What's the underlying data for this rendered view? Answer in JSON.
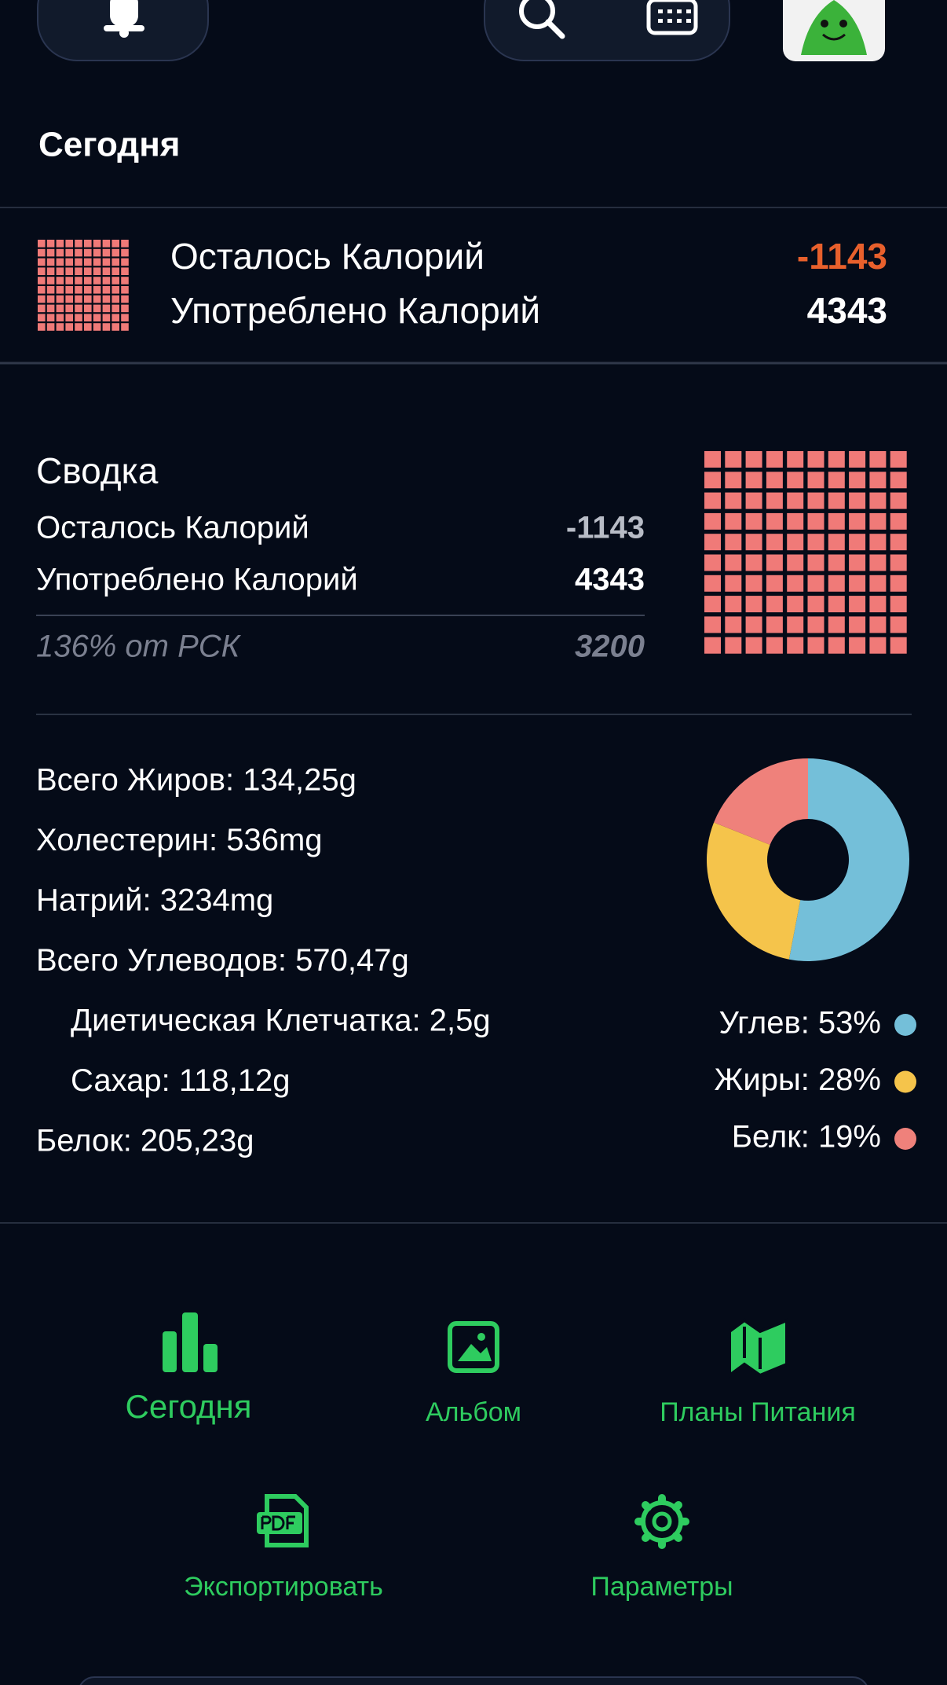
{
  "header": {
    "title": "Сегодня"
  },
  "today": {
    "rows": [
      {
        "label": "Осталось Калорий",
        "value": -1143
      },
      {
        "label": "Употреблено Калорий",
        "value": 4343
      }
    ]
  },
  "summary": {
    "title": "Сводка",
    "rows": [
      {
        "label": "Осталось Калорий",
        "value": -1143
      },
      {
        "label": "Употреблено Калорий",
        "value": 4343
      }
    ],
    "footer": {
      "label": "136% от РСК",
      "value": 3200
    }
  },
  "nutrients": [
    {
      "text": "Всего Жиров: 134,25g",
      "indent": false
    },
    {
      "text": "Холестерин: 536mg",
      "indent": false
    },
    {
      "text": "Натрий: 3234mg",
      "indent": false
    },
    {
      "text": "Всего Углеводов: 570,47g",
      "indent": false
    },
    {
      "text": "Диетическая Клетчатка: 2,5g",
      "indent": true
    },
    {
      "text": "Сахар: 118,12g",
      "indent": true
    },
    {
      "text": "Белок: 205,23g",
      "indent": false
    }
  ],
  "chart_data": {
    "type": "pie",
    "values": [
      53,
      28,
      19
    ],
    "value_labels": [
      "Углев: 53%",
      "Жиры: 28%",
      "Белк: 19%"
    ],
    "colors": [
      "#74bfd9",
      "#f5c44b",
      "#ef817b"
    ]
  },
  "nav": [
    {
      "label": "Сегодня"
    },
    {
      "label": "Альбом"
    },
    {
      "label": "Планы Питания"
    },
    {
      "label": "Экспортировать"
    },
    {
      "label": "Параметры"
    }
  ]
}
